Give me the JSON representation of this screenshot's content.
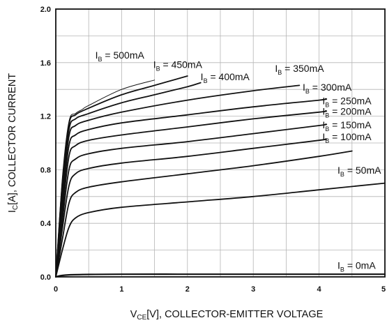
{
  "chart_data": {
    "type": "line",
    "xlabel": {
      "main": "V",
      "sub": "CE",
      "rest": "[V], COLLECTOR-EMITTER VOLTAGE"
    },
    "ylabel": {
      "main": "I",
      "sub": "C",
      "rest": "[A], COLLECTOR CURRENT"
    },
    "xlim": [
      0,
      5
    ],
    "ylim": [
      0,
      2.0
    ],
    "xticks": [
      "0",
      "1",
      "2",
      "3",
      "4",
      "5"
    ],
    "yticks": [
      "0.0",
      "0.4",
      "0.8",
      "1.2",
      "1.6",
      "2.0"
    ],
    "grid": true,
    "series": [
      {
        "label": {
          "main": "I",
          "sub": "B",
          "rest": " = 0mA"
        },
        "x": [
          0,
          0.2,
          1,
          2,
          3,
          4,
          5
        ],
        "y": [
          0,
          0.015,
          0.02,
          0.02,
          0.02,
          0.02,
          0.02
        ]
      },
      {
        "label": {
          "main": "I",
          "sub": "B",
          "rest": " = 50mA"
        },
        "x": [
          0,
          0.1,
          0.2,
          0.3,
          0.5,
          1,
          2,
          3,
          4,
          5
        ],
        "y": [
          0,
          0.2,
          0.37,
          0.44,
          0.48,
          0.52,
          0.56,
          0.6,
          0.65,
          0.7
        ]
      },
      {
        "label": {
          "main": "I",
          "sub": "B",
          "rest": " = 100mA"
        },
        "x": [
          0,
          0.1,
          0.2,
          0.3,
          0.5,
          1,
          2,
          3,
          4,
          4.5
        ],
        "y": [
          0,
          0.28,
          0.55,
          0.63,
          0.67,
          0.71,
          0.77,
          0.83,
          0.9,
          0.94
        ]
      },
      {
        "label": {
          "main": "I",
          "sub": "B",
          "rest": " = 150mA"
        },
        "x": [
          0,
          0.1,
          0.2,
          0.3,
          0.5,
          1,
          2,
          3,
          4,
          4.1
        ],
        "y": [
          0,
          0.36,
          0.68,
          0.77,
          0.81,
          0.85,
          0.9,
          0.96,
          1.02,
          1.03
        ]
      },
      {
        "label": {
          "main": "I",
          "sub": "B",
          "rest": " = 200mA"
        },
        "x": [
          0,
          0.1,
          0.2,
          0.3,
          0.5,
          1,
          2,
          3,
          4,
          4.1
        ],
        "y": [
          0,
          0.42,
          0.8,
          0.88,
          0.92,
          0.96,
          1.01,
          1.07,
          1.13,
          1.14
        ]
      },
      {
        "label": {
          "main": "I",
          "sub": "B",
          "rest": " = 250mA"
        },
        "x": [
          0,
          0.1,
          0.2,
          0.3,
          0.5,
          1,
          2,
          3,
          4,
          4.1
        ],
        "y": [
          0,
          0.48,
          0.9,
          0.98,
          1.02,
          1.06,
          1.12,
          1.18,
          1.23,
          1.24
        ]
      },
      {
        "label": {
          "main": "I",
          "sub": "B",
          "rest": " = 300mA"
        },
        "x": [
          0,
          0.1,
          0.2,
          0.3,
          0.5,
          1,
          2,
          3,
          4,
          4.1
        ],
        "y": [
          0,
          0.54,
          0.98,
          1.06,
          1.1,
          1.15,
          1.21,
          1.27,
          1.32,
          1.33
        ]
      },
      {
        "label": {
          "main": "I",
          "sub": "B",
          "rest": " = 350mA"
        },
        "x": [
          0,
          0.1,
          0.2,
          0.3,
          0.5,
          1,
          2,
          3,
          3.7
        ],
        "y": [
          0,
          0.6,
          1.05,
          1.13,
          1.17,
          1.23,
          1.32,
          1.39,
          1.43
        ]
      },
      {
        "label": {
          "main": "I",
          "sub": "B",
          "rest": " = 400mA"
        },
        "x": [
          0,
          0.1,
          0.2,
          0.3,
          0.5,
          1,
          1.5,
          2,
          2.2
        ],
        "y": [
          0,
          0.66,
          1.1,
          1.18,
          1.22,
          1.3,
          1.36,
          1.42,
          1.45
        ]
      },
      {
        "label": {
          "main": "I",
          "sub": "B",
          "rest": " = 450mA"
        },
        "x": [
          0,
          0.1,
          0.2,
          0.3,
          0.5,
          1,
          1.5,
          2
        ],
        "y": [
          0,
          0.7,
          1.14,
          1.21,
          1.26,
          1.36,
          1.43,
          1.5
        ]
      },
      {
        "label": {
          "main": "I",
          "sub": "B",
          "rest": " = 500mA"
        },
        "x": [
          0,
          0.1,
          0.2,
          0.3,
          0.4,
          0.5,
          1,
          1.5
        ],
        "y": [
          0,
          0.74,
          1.16,
          1.22,
          1.25,
          1.28,
          1.4,
          1.47
        ]
      }
    ]
  }
}
